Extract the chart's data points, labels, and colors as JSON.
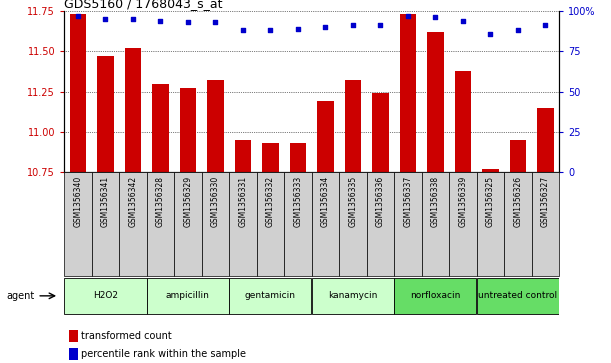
{
  "title": "GDS5160 / 1768043_s_at",
  "samples": [
    "GSM1356340",
    "GSM1356341",
    "GSM1356342",
    "GSM1356328",
    "GSM1356329",
    "GSM1356330",
    "GSM1356331",
    "GSM1356332",
    "GSM1356333",
    "GSM1356334",
    "GSM1356335",
    "GSM1356336",
    "GSM1356337",
    "GSM1356338",
    "GSM1356339",
    "GSM1356325",
    "GSM1356326",
    "GSM1356327"
  ],
  "bar_values": [
    11.73,
    11.47,
    11.52,
    11.3,
    11.27,
    11.32,
    10.95,
    10.93,
    10.93,
    11.19,
    11.32,
    11.24,
    11.73,
    11.62,
    11.38,
    10.77,
    10.95,
    11.15
  ],
  "dot_values": [
    97,
    95,
    95,
    94,
    93,
    93,
    88,
    88,
    89,
    90,
    91,
    91,
    97,
    96,
    94,
    86,
    88,
    91
  ],
  "bar_color": "#cc0000",
  "dot_color": "#0000cc",
  "ylim_left": [
    10.75,
    11.75
  ],
  "ylim_right": [
    0,
    100
  ],
  "yticks_left": [
    10.75,
    11.0,
    11.25,
    11.5,
    11.75
  ],
  "yticks_right": [
    0,
    25,
    50,
    75,
    100
  ],
  "ytick_labels_right": [
    "0",
    "25",
    "50",
    "75",
    "100%"
  ],
  "groups": [
    {
      "label": "H2O2",
      "start": 0,
      "end": 3,
      "color": "#ccffcc"
    },
    {
      "label": "ampicillin",
      "start": 3,
      "end": 6,
      "color": "#ccffcc"
    },
    {
      "label": "gentamicin",
      "start": 6,
      "end": 9,
      "color": "#ccffcc"
    },
    {
      "label": "kanamycin",
      "start": 9,
      "end": 12,
      "color": "#ccffcc"
    },
    {
      "label": "norfloxacin",
      "start": 12,
      "end": 15,
      "color": "#66dd66"
    },
    {
      "label": "untreated control",
      "start": 15,
      "end": 18,
      "color": "#66dd66"
    }
  ],
  "agent_label": "agent",
  "legend_bar_label": "transformed count",
  "legend_dot_label": "percentile rank within the sample",
  "background_color": "#ffffff",
  "plot_bg_color": "#ffffff",
  "tick_label_color_left": "#cc0000",
  "tick_label_color_right": "#0000cc",
  "bar_bottom": 10.75,
  "sample_bg_color": "#d0d0d0"
}
